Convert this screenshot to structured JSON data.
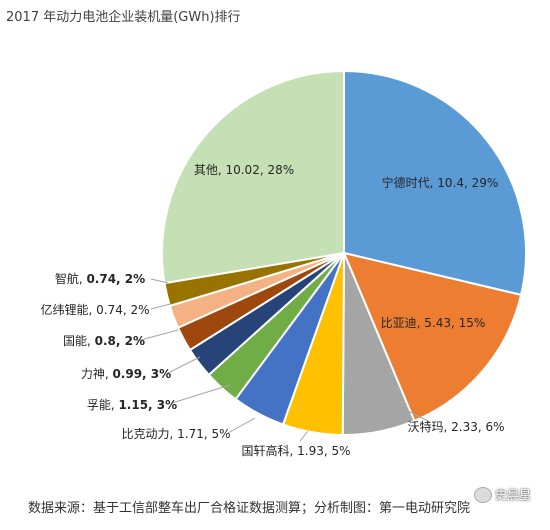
{
  "title": "2017 年动力电池企业装机量(GWh)排行",
  "source": "数据来源：基于工信部整车出厂合格证数据测算；分析制图：第一电动研究院",
  "watermark": "史晨星",
  "chart_data": {
    "type": "pie",
    "title": "2017 年动力电池企业装机量(GWh)排行",
    "unit": "GWh",
    "slices": [
      {
        "name": "宁德时代",
        "value": 10.4,
        "pct": "29%",
        "value_text": "10.4",
        "color": "#5B9BD5",
        "label_text": "宁德时代, 10.4, 29%",
        "bold": false
      },
      {
        "name": "比亚迪",
        "value": 5.43,
        "pct": "15%",
        "value_text": "5.43",
        "color": "#ED7D31",
        "label_text": "比亚迪, 5.43, 15%",
        "bold": false
      },
      {
        "name": "沃特玛",
        "value": 2.33,
        "pct": "6%",
        "value_text": "2.33",
        "color": "#A5A5A5",
        "label_text": "沃特玛, 2.33, 6%",
        "bold": false
      },
      {
        "name": "国轩高科",
        "value": 1.93,
        "pct": "5%",
        "value_text": "1.93",
        "color": "#FFC000",
        "label_text": "国轩高科, 1.93, 5%",
        "bold": false
      },
      {
        "name": "比克动力",
        "value": 1.71,
        "pct": "5%",
        "value_text": "1.71",
        "color": "#4472C4",
        "label_text": "比克动力, 1.71, 5%",
        "bold": false
      },
      {
        "name": "孚能",
        "value": 1.15,
        "pct": "3%",
        "value_text": "1.15",
        "color": "#70AD47",
        "label_text": "孚能, 1.15, 3%",
        "bold": true
      },
      {
        "name": "力神",
        "value": 0.99,
        "pct": "3%",
        "value_text": "0.99",
        "color": "#264478",
        "label_text": "力神, 0.99, 3%",
        "bold": true
      },
      {
        "name": "国能",
        "value": 0.8,
        "pct": "2%",
        "value_text": "0.8",
        "color": "#9E480E",
        "label_text": "国能, 0.8, 2%",
        "bold": true
      },
      {
        "name": "亿纬锂能",
        "value": 0.74,
        "pct": "2%",
        "value_text": "0.74",
        "color": "#F4B183",
        "label_text": "亿纬锂能, 0.74, 2%",
        "bold": false
      },
      {
        "name": "智航",
        "value": 0.74,
        "pct": "2%",
        "value_text": "0.74",
        "color": "#997300",
        "label_text": "智航, 0.74, 2%",
        "bold": true
      },
      {
        "name": "其他",
        "value": 10.02,
        "pct": "28%",
        "value_text": "10.02",
        "color": "#C5E0B4",
        "label_text": "其他, 10.02, 28%",
        "bold": false
      }
    ],
    "start_angle_deg": 0,
    "direction": "clockwise",
    "legend": "none"
  }
}
